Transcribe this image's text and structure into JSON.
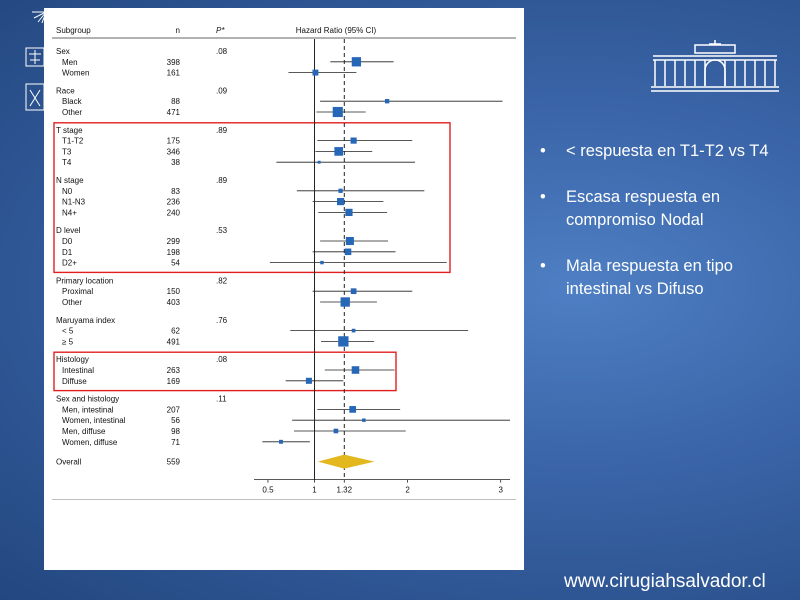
{
  "headers": {
    "subgroup": "Subgroup",
    "n": "n",
    "p": "P*",
    "hr": "Hazard Ratio (95% CI)"
  },
  "colors": {
    "marker": "#2667b8",
    "highlight": "#e02020",
    "overall": "#e2b81e",
    "text": "#111111"
  },
  "chart_data": {
    "type": "forest",
    "x_axis": {
      "ticks": [
        0.5,
        1,
        1.32,
        2,
        3
      ],
      "tick_labels": [
        "0.5",
        "1",
        "1.32",
        "2",
        "3"
      ],
      "reference": 1,
      "overall_line": 1.32,
      "xlim": [
        0.35,
        3.1
      ]
    },
    "groups": [
      {
        "label": "Sex",
        "p": ".08",
        "rows": [
          {
            "label": "Men",
            "n": "398",
            "hr": 1.45,
            "lo": 1.17,
            "hi": 1.85
          },
          {
            "label": "Women",
            "n": "161",
            "hr": 1.01,
            "lo": 0.72,
            "hi": 1.45
          }
        ]
      },
      {
        "label": "Race",
        "p": ".09",
        "rows": [
          {
            "label": "Black",
            "n": "88",
            "hr": 1.78,
            "lo": 1.06,
            "hi": 3.02
          },
          {
            "label": "Other",
            "n": "471",
            "hr": 1.25,
            "lo": 1.02,
            "hi": 1.55
          }
        ]
      },
      {
        "label": "T stage",
        "p": ".89",
        "rows": [
          {
            "label": "T1-T2",
            "n": "175",
            "hr": 1.42,
            "lo": 1.03,
            "hi": 2.05
          },
          {
            "label": "T3",
            "n": "346",
            "hr": 1.26,
            "lo": 1.01,
            "hi": 1.62
          },
          {
            "label": "T4",
            "n": "38",
            "hr": 1.05,
            "lo": 0.59,
            "hi": 2.08
          }
        ]
      },
      {
        "label": "N stage",
        "p": ".89",
        "rows": [
          {
            "label": "N0",
            "n": "83",
            "hr": 1.28,
            "lo": 0.81,
            "hi": 2.18
          },
          {
            "label": "N1-N3",
            "n": "236",
            "hr": 1.28,
            "lo": 0.98,
            "hi": 1.74
          },
          {
            "label": "N4+",
            "n": "240",
            "hr": 1.37,
            "lo": 1.04,
            "hi": 1.78
          }
        ]
      },
      {
        "label": "D level",
        "p": ".53",
        "rows": [
          {
            "label": "D0",
            "n": "299",
            "hr": 1.38,
            "lo": 1.06,
            "hi": 1.79
          },
          {
            "label": "D1",
            "n": "198",
            "hr": 1.36,
            "lo": 0.98,
            "hi": 1.87
          },
          {
            "label": "D2+",
            "n": "54",
            "hr": 1.08,
            "lo": 0.52,
            "hi": 2.42
          }
        ]
      },
      {
        "label": "Primary location",
        "p": ".82",
        "rows": [
          {
            "label": "Proximal",
            "n": "150",
            "hr": 1.42,
            "lo": 0.98,
            "hi": 2.05
          },
          {
            "label": "Other",
            "n": "403",
            "hr": 1.33,
            "lo": 1.06,
            "hi": 1.67
          }
        ]
      },
      {
        "label": "Maruyama index",
        "p": ".76",
        "rows": [
          {
            "label": "< 5",
            "n": "62",
            "hr": 1.42,
            "lo": 0.74,
            "hi": 2.65
          },
          {
            "label": "≥ 5",
            "n": "491",
            "hr": 1.31,
            "lo": 1.07,
            "hi": 1.64
          }
        ]
      },
      {
        "label": "Histology",
        "p": ".08",
        "rows": [
          {
            "label": "Intestinal",
            "n": "263",
            "hr": 1.44,
            "lo": 1.11,
            "hi": 1.86
          },
          {
            "label": "Diffuse",
            "n": "169",
            "hr": 0.94,
            "lo": 0.69,
            "hi": 1.31
          }
        ]
      },
      {
        "label": "Sex and histology",
        "p": ".11",
        "rows": [
          {
            "label": "Men, intestinal",
            "n": "207",
            "hr": 1.41,
            "lo": 1.03,
            "hi": 1.92
          },
          {
            "label": "Women, intestinal",
            "n": "56",
            "hr": 1.53,
            "lo": 0.76,
            "hi": 3.1
          },
          {
            "label": "Men, diffuse",
            "n": "98",
            "hr": 1.23,
            "lo": 0.78,
            "hi": 1.98
          },
          {
            "label": "Women, diffuse",
            "n": "71",
            "hr": 0.64,
            "lo": 0.44,
            "hi": 0.95
          }
        ]
      }
    ],
    "overall": {
      "label": "Overall",
      "n": "559",
      "hr": 1.32,
      "lo": 1.1,
      "hi": 1.58
    },
    "highlight_boxes": [
      [
        "T stage",
        "N stage",
        "D level"
      ],
      [
        "Histology"
      ]
    ]
  },
  "bullets": [
    "< respuesta en T1-T2 vs T4",
    "Escasa respuesta en compromiso Nodal",
    "Mala respuesta en tipo intestinal vs Difuso"
  ],
  "bullet_symbol": "•",
  "footer": {
    "website": "www.cirugiahsalvador.cl"
  }
}
